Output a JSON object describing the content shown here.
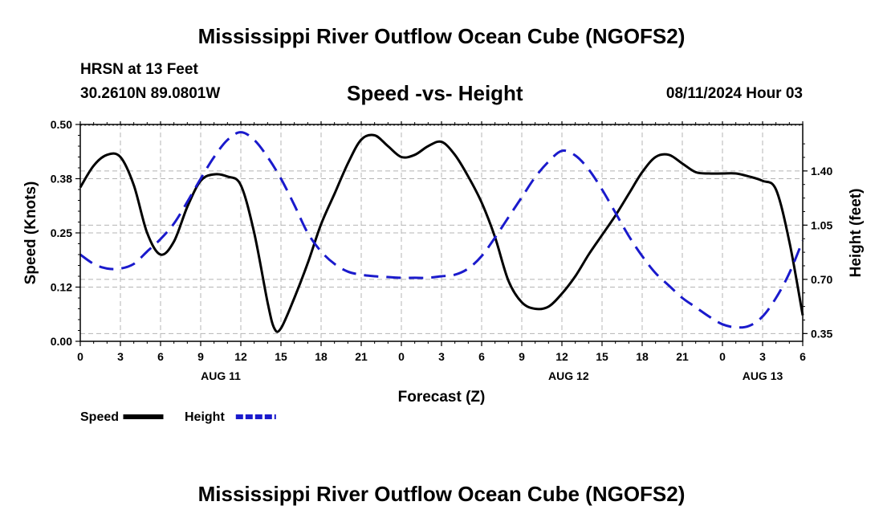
{
  "header": {
    "title": "Mississippi River Outflow Ocean Cube (NGOFS2)",
    "station_name": "HRSN at 13 Feet",
    "coords": "30.2610N  89.0801W",
    "subtitle": "Speed -vs- Height",
    "run_time": "08/11/2024 Hour 03"
  },
  "footer": {
    "title": "Mississippi River Outflow Ocean Cube (NGOFS2)"
  },
  "chart_data": {
    "type": "line",
    "title": "Speed -vs- Height",
    "xlabel": "Forecast (Z)",
    "ylabel": "Speed (Knots)",
    "y2label": "Height (feet)",
    "xlim": [
      0,
      54
    ],
    "ylim": [
      0,
      0.5
    ],
    "y2lim": [
      0.3,
      1.7
    ],
    "grid": true,
    "x_ticks": [
      {
        "x": 0,
        "label": "0"
      },
      {
        "x": 3,
        "label": "3"
      },
      {
        "x": 6,
        "label": "6"
      },
      {
        "x": 9,
        "label": "9"
      },
      {
        "x": 12,
        "label": "12"
      },
      {
        "x": 15,
        "label": "15"
      },
      {
        "x": 18,
        "label": "18"
      },
      {
        "x": 21,
        "label": "21"
      },
      {
        "x": 24,
        "label": "0"
      },
      {
        "x": 27,
        "label": "3"
      },
      {
        "x": 30,
        "label": "6"
      },
      {
        "x": 33,
        "label": "9"
      },
      {
        "x": 36,
        "label": "12"
      },
      {
        "x": 39,
        "label": "15"
      },
      {
        "x": 42,
        "label": "18"
      },
      {
        "x": 45,
        "label": "21"
      },
      {
        "x": 48,
        "label": "0"
      },
      {
        "x": 51,
        "label": "3"
      },
      {
        "x": 54,
        "label": "6"
      }
    ],
    "date_labels": [
      {
        "x": 10.5,
        "label": "AUG 11"
      },
      {
        "x": 36.5,
        "label": "AUG 12"
      },
      {
        "x": 51.0,
        "label": "AUG 13"
      }
    ],
    "y_ticks": [
      {
        "v": 0.0,
        "label": "0.00"
      },
      {
        "v": 0.125,
        "label": "0.12"
      },
      {
        "v": 0.25,
        "label": "0.25"
      },
      {
        "v": 0.375,
        "label": "0.38"
      },
      {
        "v": 0.5,
        "label": "0.50"
      }
    ],
    "y2_ticks": [
      {
        "v": 0.35,
        "label": "0.35"
      },
      {
        "v": 0.7,
        "label": "0.70"
      },
      {
        "v": 1.05,
        "label": "1.05"
      },
      {
        "v": 1.4,
        "label": "1.40"
      }
    ],
    "series": [
      {
        "name": "Speed",
        "axis": "left",
        "color": "#000000",
        "style": "solid",
        "x": [
          0,
          1,
          2,
          3,
          4,
          5,
          6,
          7,
          8,
          9,
          10,
          11,
          12,
          13,
          14,
          14.5,
          15,
          16,
          17,
          18,
          19,
          20,
          21,
          22,
          23,
          24,
          25,
          26,
          27,
          28,
          29,
          30,
          31,
          32,
          33,
          34,
          35,
          36,
          37,
          38,
          39,
          40,
          41,
          42,
          43,
          44,
          45,
          46,
          47,
          48,
          49,
          50,
          51,
          52,
          53,
          54
        ],
        "values": [
          0.355,
          0.405,
          0.43,
          0.425,
          0.36,
          0.25,
          0.2,
          0.23,
          0.31,
          0.37,
          0.385,
          0.38,
          0.36,
          0.25,
          0.09,
          0.03,
          0.03,
          0.1,
          0.18,
          0.27,
          0.34,
          0.41,
          0.465,
          0.475,
          0.45,
          0.425,
          0.43,
          0.45,
          0.46,
          0.43,
          0.38,
          0.32,
          0.24,
          0.14,
          0.09,
          0.075,
          0.08,
          0.11,
          0.15,
          0.2,
          0.245,
          0.29,
          0.34,
          0.39,
          0.425,
          0.43,
          0.41,
          0.39,
          0.387,
          0.387,
          0.387,
          0.38,
          0.37,
          0.35,
          0.23,
          0.06
        ]
      },
      {
        "name": "Height",
        "axis": "right",
        "color": "#1a1acc",
        "style": "dashed",
        "x": [
          0,
          1,
          2,
          3,
          4,
          5,
          6,
          7,
          8,
          9,
          10,
          11,
          12,
          13,
          14,
          15,
          16,
          17,
          18,
          19,
          20,
          21,
          22,
          23,
          24,
          25,
          26,
          27,
          28,
          29,
          30,
          31,
          32,
          33,
          34,
          35,
          36,
          37,
          38,
          39,
          40,
          41,
          42,
          43,
          44,
          45,
          46,
          47,
          48,
          49,
          50,
          51,
          52,
          53,
          54
        ],
        "values": [
          0.86,
          0.8,
          0.77,
          0.77,
          0.8,
          0.88,
          0.96,
          1.06,
          1.2,
          1.35,
          1.49,
          1.6,
          1.65,
          1.6,
          1.49,
          1.35,
          1.18,
          1.0,
          0.88,
          0.8,
          0.75,
          0.73,
          0.72,
          0.715,
          0.71,
          0.71,
          0.71,
          0.72,
          0.73,
          0.77,
          0.85,
          0.97,
          1.1,
          1.23,
          1.36,
          1.46,
          1.53,
          1.5,
          1.41,
          1.28,
          1.13,
          0.98,
          0.85,
          0.74,
          0.66,
          0.58,
          0.52,
          0.46,
          0.41,
          0.39,
          0.4,
          0.46,
          0.58,
          0.74,
          0.95
        ]
      }
    ],
    "legend": [
      {
        "label": "Speed",
        "color": "#000000",
        "style": "solid"
      },
      {
        "label": "Height",
        "color": "#1a1acc",
        "style": "dashed"
      }
    ],
    "legend_position": "bottom-left"
  }
}
